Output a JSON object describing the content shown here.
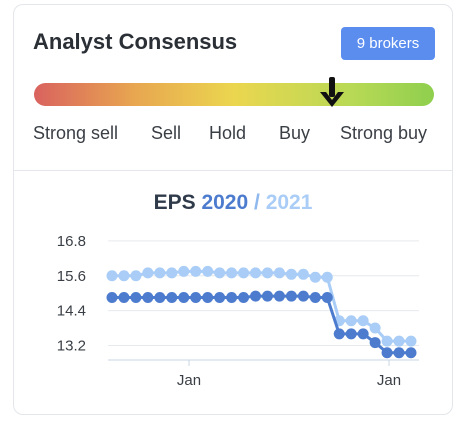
{
  "card": {
    "title": "Analyst Consensus",
    "brokers_badge": "9 brokers",
    "gauge": {
      "labels": [
        "Strong sell",
        "Sell",
        "Hold",
        "Buy",
        "Strong buy"
      ],
      "pointer_position": 0.74,
      "colors": [
        "#d9625f",
        "#e8a650",
        "#ebd64f",
        "#b7d955",
        "#8fcf4e"
      ]
    }
  },
  "chart_title": {
    "prefix": "EPS",
    "year_a": "2020",
    "separator": "/",
    "year_b": "2021"
  },
  "chart_data": {
    "type": "line",
    "title": "EPS 2020 / 2021",
    "y_ticks": [
      "16.8",
      "15.6",
      "14.4",
      "13.2"
    ],
    "x_ticks": [
      "Jan",
      "Jan"
    ],
    "ylim": [
      12.7,
      16.9
    ],
    "grid": true,
    "series": [
      {
        "name": "2020",
        "color": "#4d7cce",
        "values": [
          14.85,
          14.85,
          14.85,
          14.85,
          14.85,
          14.85,
          14.85,
          14.85,
          14.85,
          14.85,
          14.85,
          14.85,
          14.9,
          14.9,
          14.9,
          14.9,
          14.9,
          14.85,
          14.85,
          13.6,
          13.6,
          13.6,
          13.3,
          12.95,
          12.95,
          12.95
        ]
      },
      {
        "name": "2021",
        "color": "#a9cdf6",
        "values": [
          15.6,
          15.6,
          15.6,
          15.7,
          15.7,
          15.7,
          15.75,
          15.75,
          15.75,
          15.7,
          15.7,
          15.7,
          15.7,
          15.7,
          15.7,
          15.65,
          15.65,
          15.55,
          15.55,
          14.05,
          14.05,
          14.05,
          13.8,
          13.35,
          13.35,
          13.35
        ]
      }
    ]
  }
}
